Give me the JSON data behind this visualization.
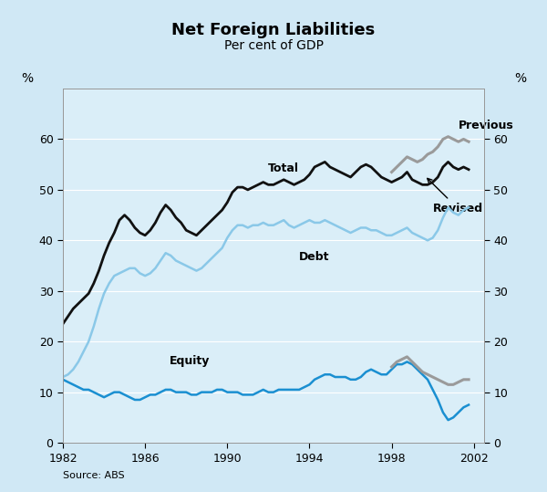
{
  "title": "Net Foreign Liabilities",
  "subtitle": "Per cent of GDP",
  "source": "Source: ABS",
  "outer_bg": "#d0e8f5",
  "plot_bg": "#daeef8",
  "xlim": [
    1982,
    2002.5
  ],
  "ylim": [
    0,
    70
  ],
  "xticks": [
    1982,
    1986,
    1990,
    1994,
    1998,
    2002
  ],
  "yticks": [
    0,
    10,
    20,
    30,
    40,
    50,
    60
  ],
  "ylabel_left": "%",
  "ylabel_right": "%",
  "total_x": [
    1982.0,
    1982.25,
    1982.5,
    1982.75,
    1983.0,
    1983.25,
    1983.5,
    1983.75,
    1984.0,
    1984.25,
    1984.5,
    1984.75,
    1985.0,
    1985.25,
    1985.5,
    1985.75,
    1986.0,
    1986.25,
    1986.5,
    1986.75,
    1987.0,
    1987.25,
    1987.5,
    1987.75,
    1988.0,
    1988.25,
    1988.5,
    1988.75,
    1989.0,
    1989.25,
    1989.5,
    1989.75,
    1990.0,
    1990.25,
    1990.5,
    1990.75,
    1991.0,
    1991.25,
    1991.5,
    1991.75,
    1992.0,
    1992.25,
    1992.5,
    1992.75,
    1993.0,
    1993.25,
    1993.5,
    1993.75,
    1994.0,
    1994.25,
    1994.5,
    1994.75,
    1995.0,
    1995.25,
    1995.5,
    1995.75,
    1996.0,
    1996.25,
    1996.5,
    1996.75,
    1997.0,
    1997.25,
    1997.5,
    1997.75,
    1998.0,
    1998.25,
    1998.5,
    1998.75,
    1999.0,
    1999.25,
    1999.5,
    1999.75,
    2000.0,
    2000.25,
    2000.5,
    2000.75,
    2001.0,
    2001.25,
    2001.5,
    2001.75
  ],
  "total_y": [
    23.5,
    25.0,
    26.5,
    27.5,
    28.5,
    29.5,
    31.5,
    34.0,
    37.0,
    39.5,
    41.5,
    44.0,
    45.0,
    44.0,
    42.5,
    41.5,
    41.0,
    42.0,
    43.5,
    45.5,
    47.0,
    46.0,
    44.5,
    43.5,
    42.0,
    41.5,
    41.0,
    42.0,
    43.0,
    44.0,
    45.0,
    46.0,
    47.5,
    49.5,
    50.5,
    50.5,
    50.0,
    50.5,
    51.0,
    51.5,
    51.0,
    51.0,
    51.5,
    52.0,
    51.5,
    51.0,
    51.5,
    52.0,
    53.0,
    54.5,
    55.0,
    55.5,
    54.5,
    54.0,
    53.5,
    53.0,
    52.5,
    53.5,
    54.5,
    55.0,
    54.5,
    53.5,
    52.5,
    52.0,
    51.5,
    52.0,
    52.5,
    53.5,
    52.0,
    51.5,
    51.0,
    51.0,
    51.5,
    52.5,
    54.5,
    55.5,
    54.5,
    54.0,
    54.5,
    54.0
  ],
  "debt_x": [
    1982.0,
    1982.25,
    1982.5,
    1982.75,
    1983.0,
    1983.25,
    1983.5,
    1983.75,
    1984.0,
    1984.25,
    1984.5,
    1984.75,
    1985.0,
    1985.25,
    1985.5,
    1985.75,
    1986.0,
    1986.25,
    1986.5,
    1986.75,
    1987.0,
    1987.25,
    1987.5,
    1987.75,
    1988.0,
    1988.25,
    1988.5,
    1988.75,
    1989.0,
    1989.25,
    1989.5,
    1989.75,
    1990.0,
    1990.25,
    1990.5,
    1990.75,
    1991.0,
    1991.25,
    1991.5,
    1991.75,
    1992.0,
    1992.25,
    1992.5,
    1992.75,
    1993.0,
    1993.25,
    1993.5,
    1993.75,
    1994.0,
    1994.25,
    1994.5,
    1994.75,
    1995.0,
    1995.25,
    1995.5,
    1995.75,
    1996.0,
    1996.25,
    1996.5,
    1996.75,
    1997.0,
    1997.25,
    1997.5,
    1997.75,
    1998.0,
    1998.25,
    1998.5,
    1998.75,
    1999.0,
    1999.25,
    1999.5,
    1999.75,
    2000.0,
    2000.25,
    2000.5,
    2000.75,
    2001.0,
    2001.25,
    2001.5,
    2001.75
  ],
  "debt_y": [
    13.0,
    13.5,
    14.5,
    16.0,
    18.0,
    20.0,
    23.0,
    26.5,
    29.5,
    31.5,
    33.0,
    33.5,
    34.0,
    34.5,
    34.5,
    33.5,
    33.0,
    33.5,
    34.5,
    36.0,
    37.5,
    37.0,
    36.0,
    35.5,
    35.0,
    34.5,
    34.0,
    34.5,
    35.5,
    36.5,
    37.5,
    38.5,
    40.5,
    42.0,
    43.0,
    43.0,
    42.5,
    43.0,
    43.0,
    43.5,
    43.0,
    43.0,
    43.5,
    44.0,
    43.0,
    42.5,
    43.0,
    43.5,
    44.0,
    43.5,
    43.5,
    44.0,
    43.5,
    43.0,
    42.5,
    42.0,
    41.5,
    42.0,
    42.5,
    42.5,
    42.0,
    42.0,
    41.5,
    41.0,
    41.0,
    41.5,
    42.0,
    42.5,
    41.5,
    41.0,
    40.5,
    40.0,
    40.5,
    42.0,
    44.5,
    46.5,
    45.5,
    45.0,
    46.0,
    46.5
  ],
  "equity_x": [
    1982.0,
    1982.25,
    1982.5,
    1982.75,
    1983.0,
    1983.25,
    1983.5,
    1983.75,
    1984.0,
    1984.25,
    1984.5,
    1984.75,
    1985.0,
    1985.25,
    1985.5,
    1985.75,
    1986.0,
    1986.25,
    1986.5,
    1986.75,
    1987.0,
    1987.25,
    1987.5,
    1987.75,
    1988.0,
    1988.25,
    1988.5,
    1988.75,
    1989.0,
    1989.25,
    1989.5,
    1989.75,
    1990.0,
    1990.25,
    1990.5,
    1990.75,
    1991.0,
    1991.25,
    1991.5,
    1991.75,
    1992.0,
    1992.25,
    1992.5,
    1992.75,
    1993.0,
    1993.25,
    1993.5,
    1993.75,
    1994.0,
    1994.25,
    1994.5,
    1994.75,
    1995.0,
    1995.25,
    1995.5,
    1995.75,
    1996.0,
    1996.25,
    1996.5,
    1996.75,
    1997.0,
    1997.25,
    1997.5,
    1997.75,
    1998.0,
    1998.25,
    1998.5,
    1998.75,
    1999.0,
    1999.25,
    1999.5,
    1999.75,
    2000.0,
    2000.25,
    2000.5,
    2000.75,
    2001.0,
    2001.25,
    2001.5,
    2001.75
  ],
  "equity_y": [
    12.5,
    12.0,
    11.5,
    11.0,
    10.5,
    10.5,
    10.0,
    9.5,
    9.0,
    9.5,
    10.0,
    10.0,
    9.5,
    9.0,
    8.5,
    8.5,
    9.0,
    9.5,
    9.5,
    10.0,
    10.5,
    10.5,
    10.0,
    10.0,
    10.0,
    9.5,
    9.5,
    10.0,
    10.0,
    10.0,
    10.5,
    10.5,
    10.0,
    10.0,
    10.0,
    9.5,
    9.5,
    9.5,
    10.0,
    10.5,
    10.0,
    10.0,
    10.5,
    10.5,
    10.5,
    10.5,
    10.5,
    11.0,
    11.5,
    12.5,
    13.0,
    13.5,
    13.5,
    13.0,
    13.0,
    13.0,
    12.5,
    12.5,
    13.0,
    14.0,
    14.5,
    14.0,
    13.5,
    13.5,
    14.5,
    15.5,
    15.5,
    16.0,
    15.5,
    14.5,
    13.5,
    12.5,
    10.5,
    8.5,
    6.0,
    4.5,
    5.0,
    6.0,
    7.0,
    7.5
  ],
  "previous_total_x": [
    1998.0,
    1998.25,
    1998.5,
    1998.75,
    1999.0,
    1999.25,
    1999.5,
    1999.75,
    2000.0,
    2000.25,
    2000.5,
    2000.75,
    2001.0,
    2001.25,
    2001.5,
    2001.75
  ],
  "previous_total_y": [
    53.5,
    54.5,
    55.5,
    56.5,
    56.0,
    55.5,
    56.0,
    57.0,
    57.5,
    58.5,
    60.0,
    60.5,
    60.0,
    59.5,
    60.0,
    59.5
  ],
  "previous_equity_x": [
    1998.0,
    1998.25,
    1998.5,
    1998.75,
    1999.0,
    1999.25,
    1999.5,
    1999.75,
    2000.0,
    2000.25,
    2000.5,
    2000.75,
    2001.0,
    2001.25,
    2001.5,
    2001.75
  ],
  "previous_equity_y": [
    15.0,
    16.0,
    16.5,
    17.0,
    16.0,
    15.0,
    14.0,
    13.5,
    13.0,
    12.5,
    12.0,
    11.5,
    11.5,
    12.0,
    12.5,
    12.5
  ],
  "total_color": "#111111",
  "debt_color": "#8ac8e8",
  "equity_color": "#1a8fd1",
  "previous_color": "#9a9a9a",
  "annotation_total": "Total",
  "annotation_debt": "Debt",
  "annotation_equity": "Equity",
  "annotation_previous": "Previous",
  "annotation_revised": "Revised",
  "grid_color": "#ffffff",
  "tick_label_size": 9,
  "title_size": 13,
  "subtitle_size": 10,
  "annot_size": 9
}
